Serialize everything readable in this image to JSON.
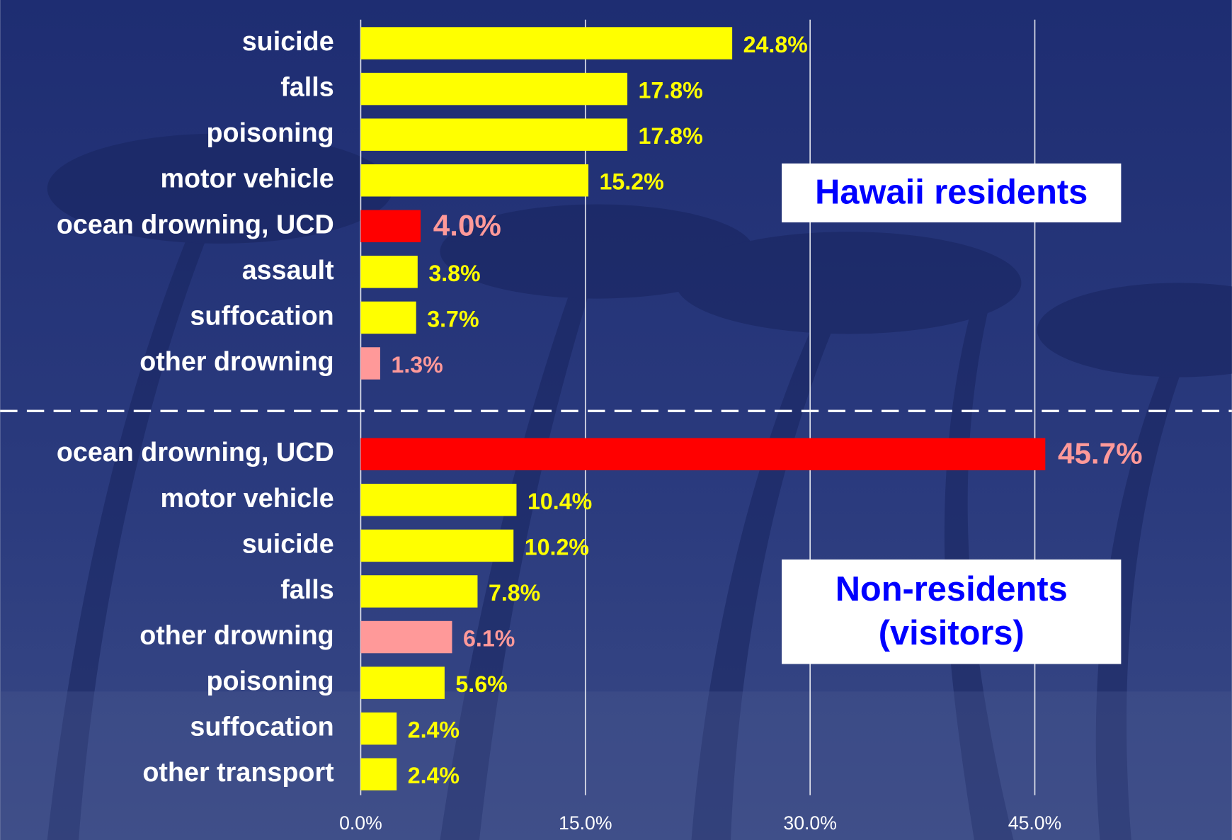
{
  "chart_data": {
    "type": "bar",
    "orientation": "horizontal",
    "xlim": [
      0,
      58
    ],
    "xticks": [
      {
        "value": 0,
        "label": "0.0%"
      },
      {
        "value": 15,
        "label": "15.0%"
      },
      {
        "value": 30,
        "label": "30.0%"
      },
      {
        "value": 45,
        "label": "45.0%"
      }
    ],
    "grid": true,
    "groups": [
      {
        "label": [
          "Hawaii residents"
        ],
        "categories": [
          "suicide",
          "falls",
          "poisoning",
          "motor vehicle",
          "ocean drowning, UCD",
          "assault",
          "suffocation",
          "other drowning"
        ],
        "values": [
          24.8,
          17.8,
          17.8,
          15.2,
          4.0,
          3.8,
          3.7,
          1.3
        ],
        "value_labels": [
          "24.8%",
          "17.8%",
          "17.8%",
          "15.2%",
          "4.0%",
          "3.8%",
          "3.7%",
          "1.3%"
        ],
        "colors": [
          "#ffff00",
          "#ffff00",
          "#ffff00",
          "#ffff00",
          "#ff0000",
          "#ffff00",
          "#ffff00",
          "#ff9999"
        ],
        "label_colors": [
          "#ffff00",
          "#ffff00",
          "#ffff00",
          "#ffff00",
          "#ff9999",
          "#ffff00",
          "#ffff00",
          "#ff9999"
        ]
      },
      {
        "label": [
          "Non-residents",
          "(visitors)"
        ],
        "categories": [
          "ocean drowning, UCD",
          "motor vehicle",
          "suicide",
          "falls",
          "other drowning",
          "poisoning",
          "suffocation",
          "other transport"
        ],
        "values": [
          45.7,
          10.4,
          10.2,
          7.8,
          6.1,
          5.6,
          2.4,
          2.4
        ],
        "value_labels": [
          "45.7%",
          "10.4%",
          "10.2%",
          "7.8%",
          "6.1%",
          "5.6%",
          "2.4%",
          "2.4%"
        ],
        "colors": [
          "#ff0000",
          "#ffff00",
          "#ffff00",
          "#ffff00",
          "#ff9999",
          "#ffff00",
          "#ffff00",
          "#ffff00"
        ],
        "label_colors": [
          "#ff9999",
          "#ffff00",
          "#ffff00",
          "#ffff00",
          "#ff9999",
          "#ffff00",
          "#ffff00",
          "#ffff00"
        ]
      }
    ]
  }
}
